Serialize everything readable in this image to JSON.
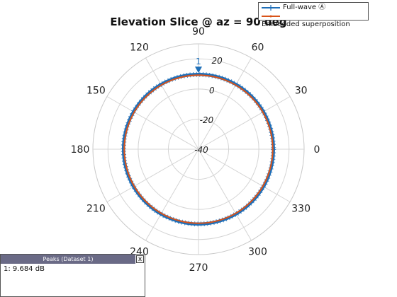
{
  "chart_data": {
    "type": "polar",
    "title": "Elevation Slice @ az = 90 deg",
    "angle_ticks": [
      {
        "deg": 0,
        "label": "0"
      },
      {
        "deg": 30,
        "label": "30"
      },
      {
        "deg": 60,
        "label": "60"
      },
      {
        "deg": 90,
        "label": "90"
      },
      {
        "deg": 120,
        "label": "120"
      },
      {
        "deg": 150,
        "label": "150"
      },
      {
        "deg": 180,
        "label": "180"
      },
      {
        "deg": 210,
        "label": "210"
      },
      {
        "deg": 240,
        "label": "240"
      },
      {
        "deg": 270,
        "label": "270"
      },
      {
        "deg": 300,
        "label": "300"
      },
      {
        "deg": 330,
        "label": "330"
      }
    ],
    "radial_ticks": [
      {
        "value": -40,
        "label": "-40"
      },
      {
        "value": -20,
        "label": "-20"
      },
      {
        "value": 0,
        "label": "0"
      },
      {
        "value": 20,
        "label": "20"
      }
    ],
    "r_min": -40,
    "r_max": 30,
    "radial_label_angle_deg": 80,
    "series": [
      {
        "name": "Full-wave Ⓐ",
        "color": "#1f6fb8",
        "marker": "+",
        "value_db": 9.684
      },
      {
        "name": "Embedded superposition",
        "color": "#d95319",
        "marker": ".",
        "value_db": 9.2
      }
    ],
    "peak_marker": {
      "angle_deg": 90,
      "label": "1",
      "color": "#1f6fb8"
    },
    "legend_position": "top-right"
  },
  "peaks_panel": {
    "title": "Peaks (Dataset 1)",
    "close_label": "x",
    "rows": [
      "1: 9.684 dB"
    ]
  }
}
